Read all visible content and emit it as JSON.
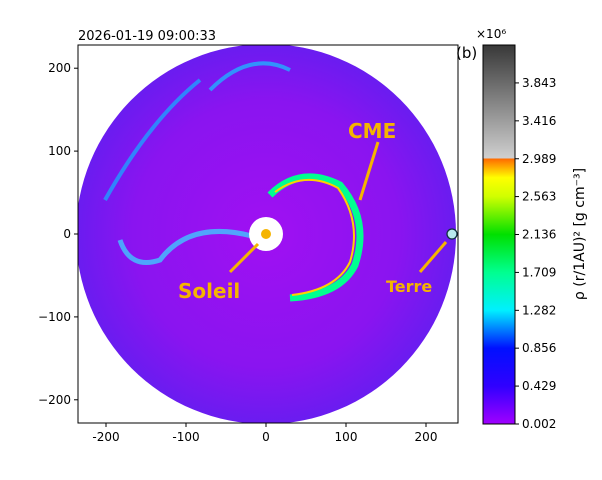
{
  "chart_data": {
    "type": "heatmap",
    "title": "2026-01-19 09:00:33",
    "panel_label": "(b)",
    "xlabel": "",
    "ylabel": "",
    "xlim": [
      -235,
      240
    ],
    "ylim": [
      -228,
      228
    ],
    "x_ticks": [
      "-200",
      "-100",
      "0",
      "100",
      "200"
    ],
    "x_tick_values": [
      -200,
      -100,
      0,
      100,
      200
    ],
    "y_ticks": [
      "200",
      "100",
      "0",
      "−100",
      "−200"
    ],
    "y_tick_values": [
      200,
      100,
      0,
      -100,
      -200
    ],
    "colorbar": {
      "label": "ρ (r/1AU)² [g cm⁻³]",
      "multiplier": "×10⁶",
      "ticks": [
        "0.002",
        "0.429",
        "0.856",
        "1.282",
        "1.709",
        "2.136",
        "2.563",
        "2.989",
        "3.416",
        "3.843"
      ],
      "tick_values": [
        0.002,
        0.429,
        0.856,
        1.282,
        1.709,
        2.136,
        2.563,
        2.989,
        3.416,
        3.843
      ],
      "range": [
        0.002,
        4.27
      ]
    },
    "annotations": [
      {
        "text": "CME",
        "x": 110,
        "y": 110
      },
      {
        "text": "Soleil",
        "x": 0,
        "y": 0
      },
      {
        "text": "Terre",
        "x": 222,
        "y": 0
      }
    ],
    "colors": {
      "annotation": "#f5b400",
      "earth": "#b8e8ee",
      "sun": "#ffffff",
      "background": "#9a10f0"
    }
  }
}
